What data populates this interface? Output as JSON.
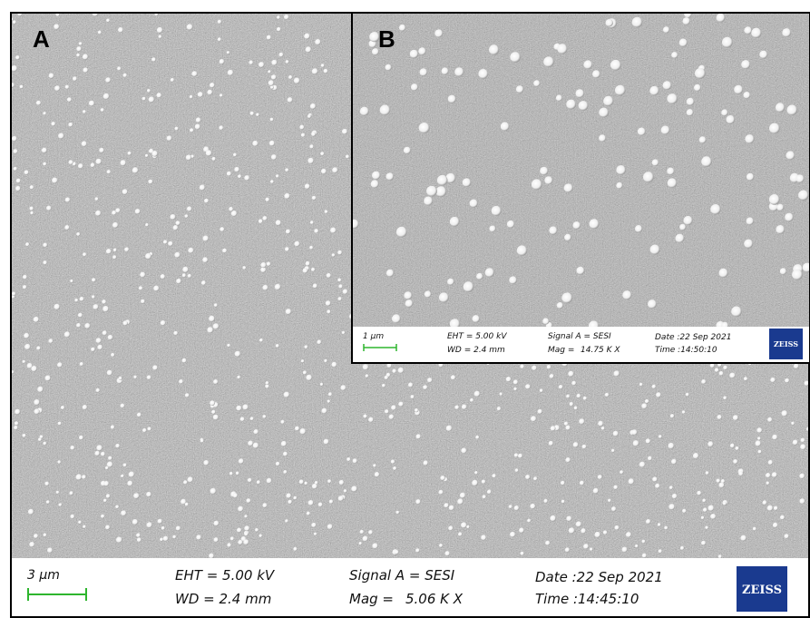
{
  "panels": [
    {
      "label": "A",
      "info": {
        "scale": "3 µm",
        "eht": "EHT = 5.00 kV",
        "wd": "WD = 2.4 mm",
        "signal": "Signal A = SESI",
        "mag_label": "Mag =",
        "mag": "5.06 K X",
        "date": "Date :22 Sep 2021",
        "time": "Time :14:45:10",
        "logo": "ZEISS"
      }
    },
    {
      "label": "B",
      "info": {
        "scale": "1 µm",
        "eht": "EHT = 5.00 kV",
        "wd": "WD = 2.4 mm",
        "signal": "Signal A = SESI",
        "mag_label": "Mag =",
        "mag": "14.75 K X",
        "date": "Date :22 Sep 2021",
        "time": "Time :14:50:10",
        "logo": "ZEISS"
      }
    }
  ]
}
